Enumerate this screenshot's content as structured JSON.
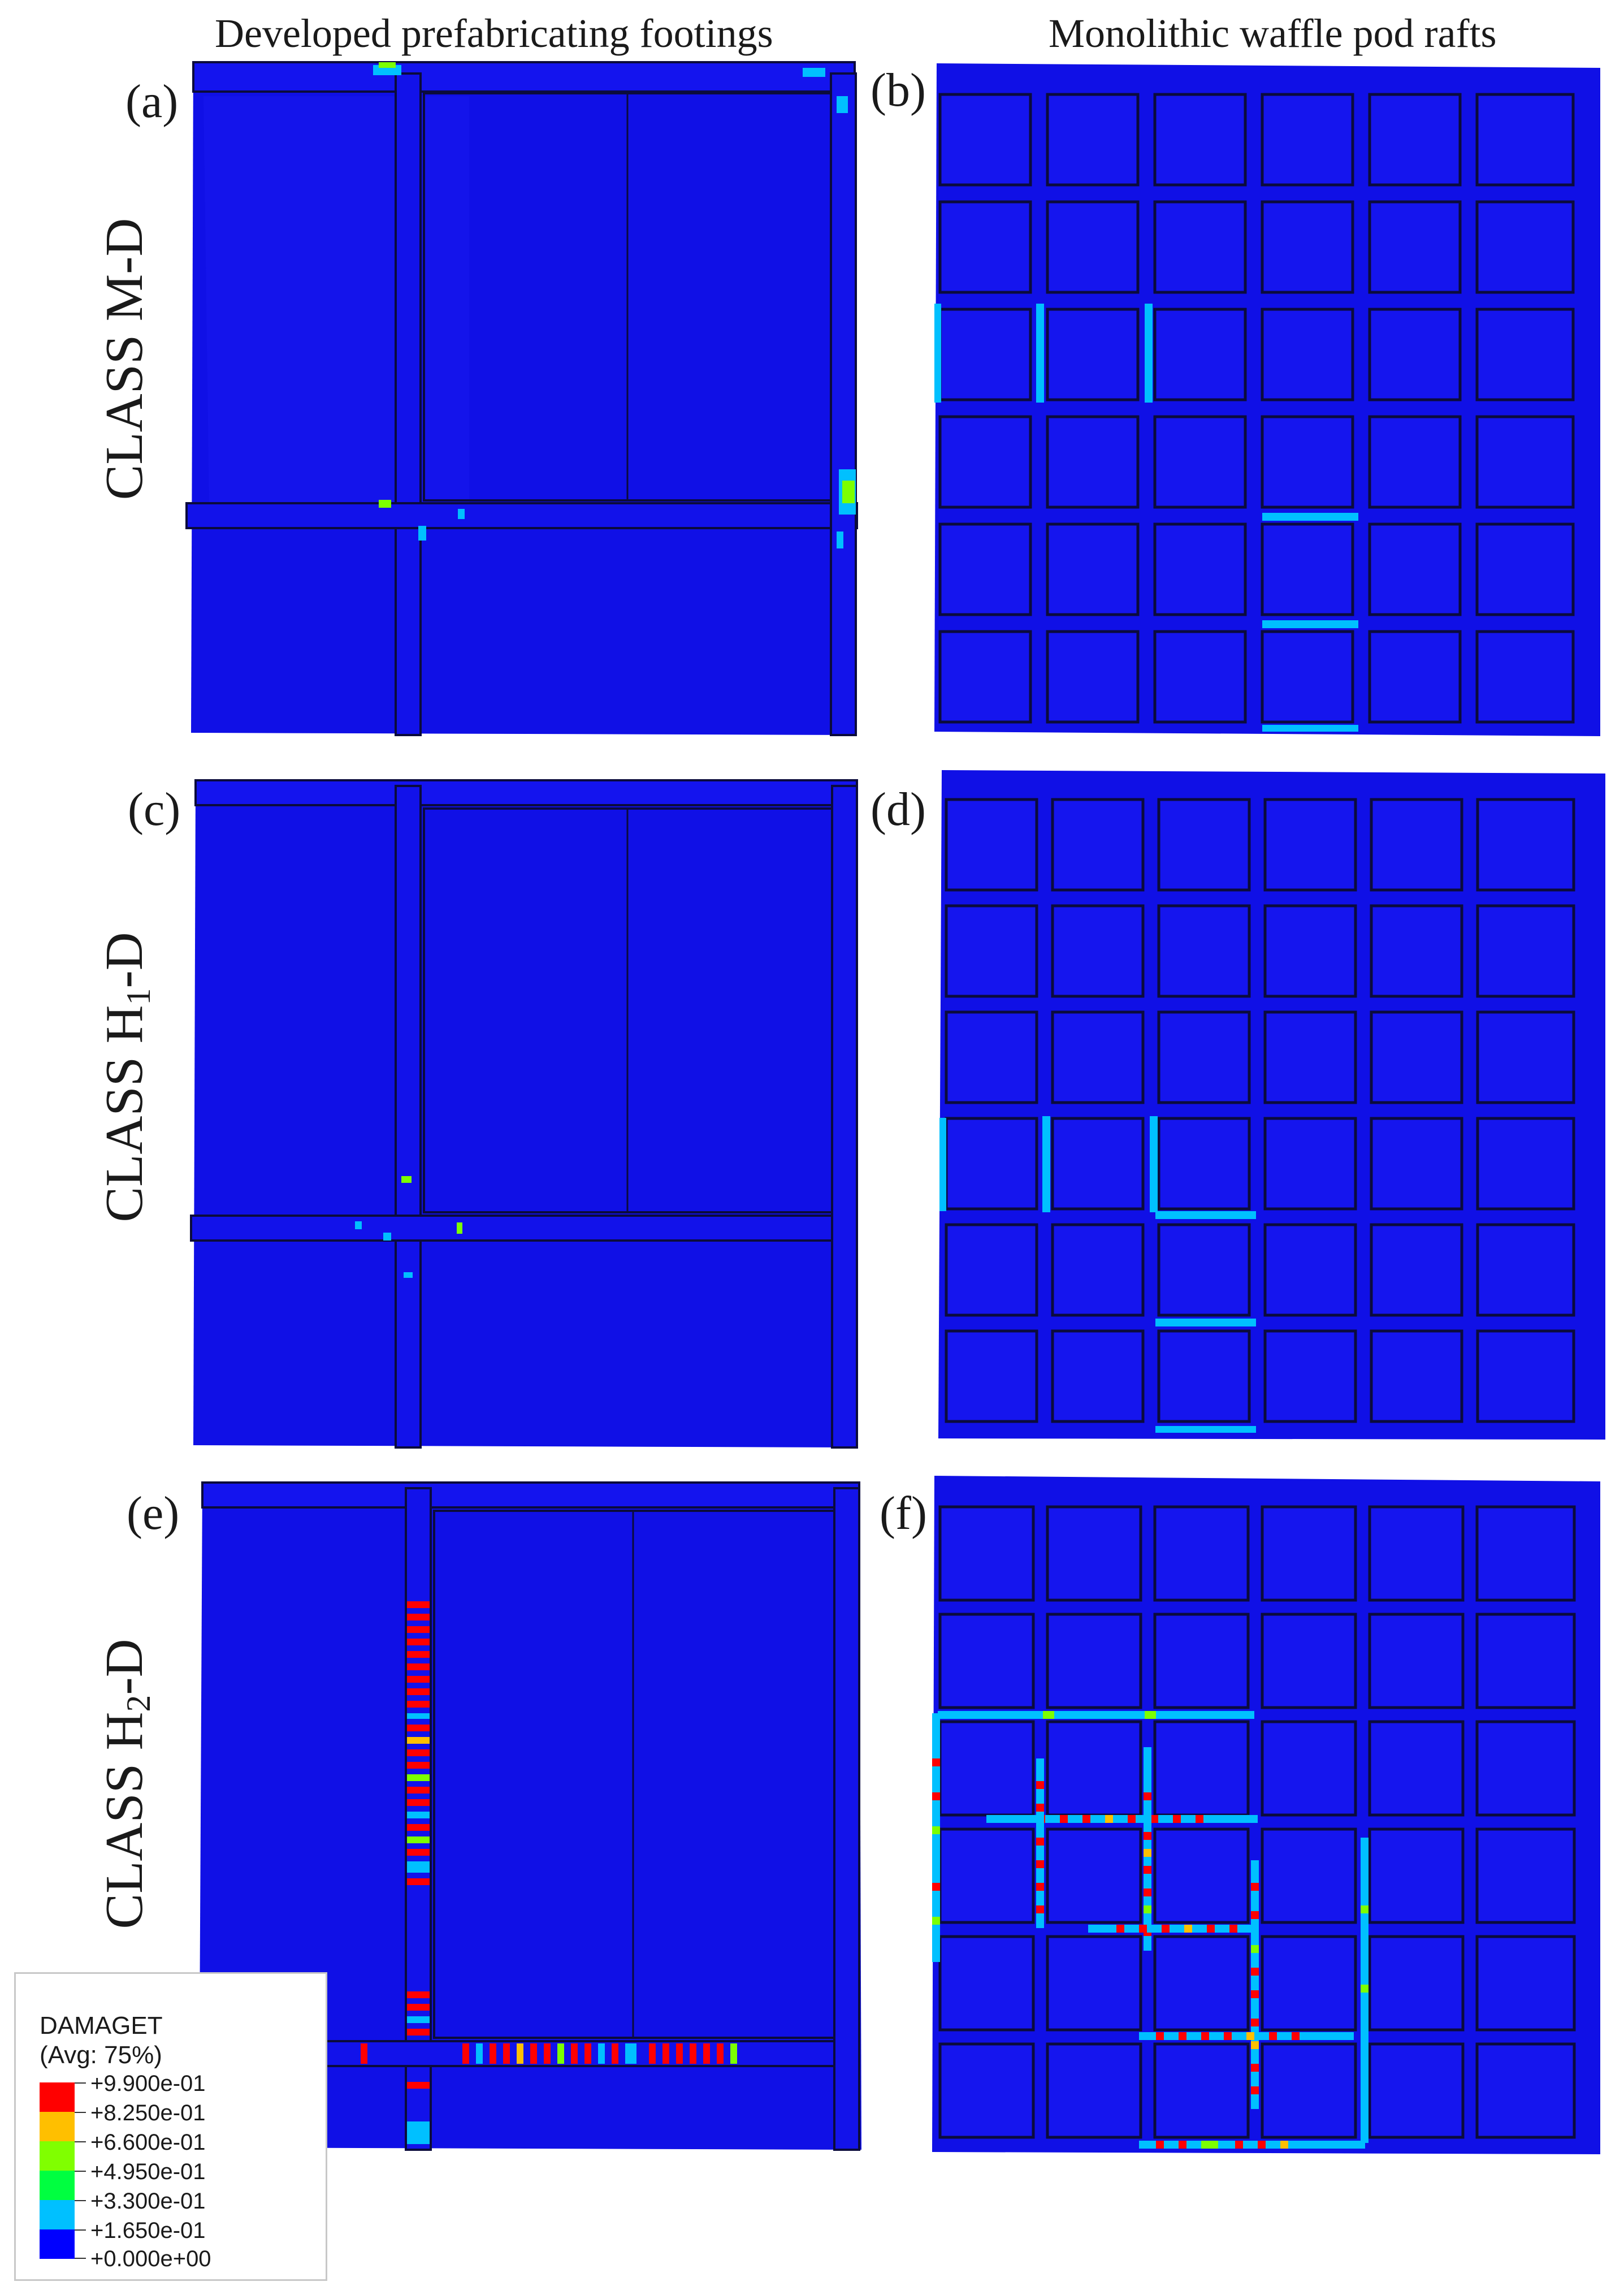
{
  "headers": {
    "left": "Developed prefabricating footings",
    "right": "Monolithic waffle pod rafts"
  },
  "panels": [
    "(a)",
    "(b)",
    "(c)",
    "(d)",
    "(e)",
    "(f)"
  ],
  "rows": [
    {
      "text": "CLASS M-D",
      "base": "CLASS M-D",
      "sub": "",
      "suffix": ""
    },
    {
      "text": "CLASS H1-D",
      "base": "CLASS H",
      "sub": "1",
      "suffix": "-D"
    },
    {
      "text": "CLASS H2-D",
      "base": "CLASS H",
      "sub": "2",
      "suffix": "-D"
    }
  ],
  "legend": {
    "title": "DAMAGET",
    "subtitle": "(Avg: 75%)",
    "values": [
      "+9.900e-01",
      "+8.250e-01",
      "+6.600e-01",
      "+4.950e-01",
      "+3.300e-01",
      "+1.650e-01",
      "+0.000e+00"
    ],
    "colors": [
      "#ff0000",
      "#ffbf00",
      "#80ff00",
      "#00ff40",
      "#00c0ff",
      "#0000ff"
    ]
  },
  "colors": {
    "base": "#1010e6",
    "base_light": "#1a1af2",
    "edge": "#0b0b3c",
    "damage_low": "#00c0ff",
    "damage_mid": "#7cff00",
    "damage_high": "#ff0000",
    "damage_orange": "#ffbf00"
  }
}
